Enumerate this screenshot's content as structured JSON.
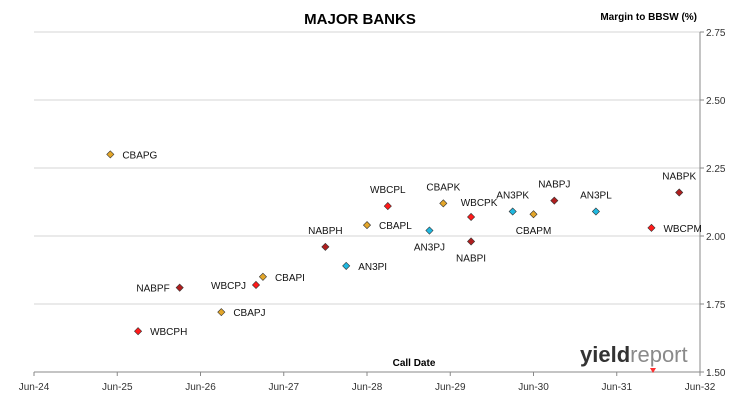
{
  "chart_data": {
    "type": "scatter",
    "title": "MAJOR BANKS",
    "ylabel": "Margin to BBSW (%)",
    "xlabel": "Call Date",
    "x_ticks": [
      "Jun-24",
      "Jun-25",
      "Jun-26",
      "Jun-27",
      "Jun-28",
      "Jun-29",
      "Jun-30",
      "Jun-31",
      "Jun-32"
    ],
    "y_ticks": [
      "1.50",
      "1.75",
      "2.00",
      "2.25",
      "2.50",
      "2.75"
    ],
    "xlim": [
      "2024-06",
      "2032-06"
    ],
    "ylim": [
      1.5,
      2.75
    ],
    "grid": "horizontal",
    "colors": {
      "red": "#ff1a1a",
      "darkred": "#b01e1e",
      "gold": "#e3a62a",
      "cyan": "#1fb8e0"
    },
    "points": [
      {
        "label": "CBAPG",
        "x": "2025-05",
        "y": 2.3,
        "color": "gold",
        "pos": "right"
      },
      {
        "label": "WBCPH",
        "x": "2025-09",
        "y": 1.65,
        "color": "red",
        "pos": "right"
      },
      {
        "label": "NABPF",
        "x": "2026-03",
        "y": 1.81,
        "color": "darkred",
        "pos": "left"
      },
      {
        "label": "CBAPJ",
        "x": "2026-09",
        "y": 1.72,
        "color": "gold",
        "pos": "right"
      },
      {
        "label": "WBCPJ",
        "x": "2027-02",
        "y": 1.82,
        "color": "red",
        "pos": "left"
      },
      {
        "label": "CBAPI",
        "x": "2027-03",
        "y": 1.85,
        "color": "gold",
        "pos": "right"
      },
      {
        "label": "NABPH",
        "x": "2027-12",
        "y": 1.96,
        "color": "darkred",
        "pos": "above"
      },
      {
        "label": "AN3PI",
        "x": "2028-03",
        "y": 1.89,
        "color": "cyan",
        "pos": "right"
      },
      {
        "label": "CBAPL",
        "x": "2028-06",
        "y": 2.04,
        "color": "gold",
        "pos": "right"
      },
      {
        "label": "WBCPL",
        "x": "2028-09",
        "y": 2.11,
        "color": "red",
        "pos": "above"
      },
      {
        "label": "AN3PJ",
        "x": "2029-03",
        "y": 2.02,
        "color": "cyan",
        "pos": "below"
      },
      {
        "label": "CBAPK",
        "x": "2029-05",
        "y": 2.12,
        "color": "gold",
        "pos": "above"
      },
      {
        "label": "WBCPK",
        "x": "2029-09",
        "y": 2.07,
        "color": "red",
        "pos": "above-right"
      },
      {
        "label": "NABPI",
        "x": "2029-09",
        "y": 1.98,
        "color": "darkred",
        "pos": "below"
      },
      {
        "label": "AN3PK",
        "x": "2030-03",
        "y": 2.09,
        "color": "cyan",
        "pos": "above"
      },
      {
        "label": "CBAPM",
        "x": "2030-06",
        "y": 2.08,
        "color": "gold",
        "pos": "below"
      },
      {
        "label": "NABPJ",
        "x": "2030-09",
        "y": 2.13,
        "color": "darkred",
        "pos": "above"
      },
      {
        "label": "AN3PL",
        "x": "2031-03",
        "y": 2.09,
        "color": "cyan",
        "pos": "above"
      },
      {
        "label": "WBCPM",
        "x": "2031-11",
        "y": 2.03,
        "color": "red",
        "pos": "right"
      },
      {
        "label": "NABPK",
        "x": "2032-03",
        "y": 2.16,
        "color": "darkred",
        "pos": "above"
      }
    ]
  },
  "logo": {
    "part1": "yield",
    "part2": "report"
  }
}
